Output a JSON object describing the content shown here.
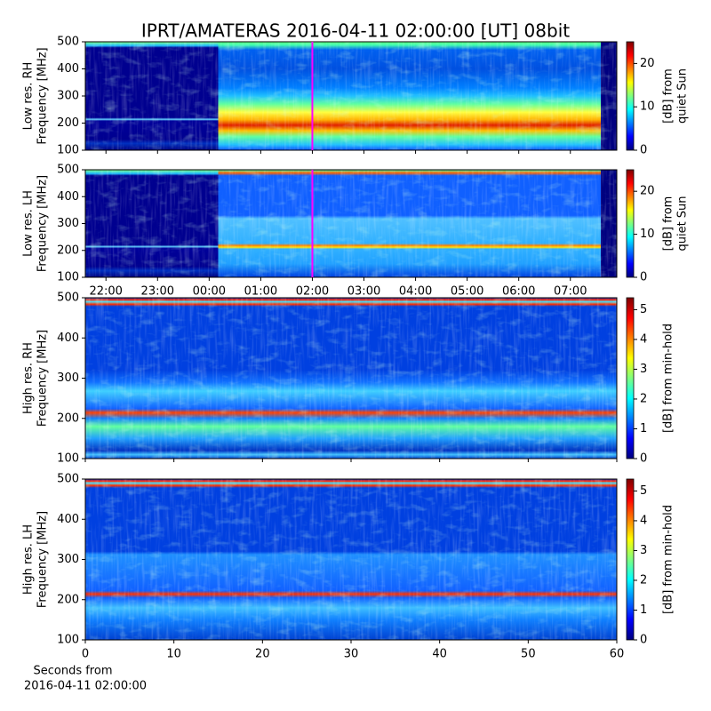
{
  "title": "IPRT/AMATERAS 2016-04-11 02:00:00 [UT]   08bit",
  "chart_data": [
    {
      "type": "heatmap",
      "ylabel": [
        "Low res. RH",
        "Frequency [MHz]"
      ],
      "xlim": [
        21.6,
        31.9
      ],
      "xticks": [
        22,
        23,
        24,
        25,
        26,
        27,
        28,
        29,
        30,
        31
      ],
      "show_xtick_labels": false,
      "ylim": [
        100,
        500
      ],
      "yticks": [
        100,
        200,
        300,
        400,
        500
      ],
      "vline": {
        "x": 26,
        "color": "#ff00ff"
      },
      "colorbar": {
        "label": [
          "[dB] from",
          "quiet Sun"
        ],
        "lim": [
          0,
          25
        ],
        "ticks": [
          0,
          10,
          20
        ],
        "colormap": "jet"
      }
    },
    {
      "type": "heatmap",
      "ylabel": [
        "Low res. LH",
        "Frequency [MHz]"
      ],
      "xlim": [
        21.6,
        31.9
      ],
      "xticks": [
        {
          "value": 22,
          "label": "22:00"
        },
        {
          "value": 23,
          "label": "23:00"
        },
        {
          "value": 24,
          "label": "00:00"
        },
        {
          "value": 25,
          "label": "01:00"
        },
        {
          "value": 26,
          "label": "02:00"
        },
        {
          "value": 27,
          "label": "03:00"
        },
        {
          "value": 28,
          "label": "04:00"
        },
        {
          "value": 29,
          "label": "05:00"
        },
        {
          "value": 30,
          "label": "06:00"
        },
        {
          "value": 31,
          "label": "07:00"
        }
      ],
      "show_xtick_labels": true,
      "ylim": [
        100,
        500
      ],
      "yticks": [
        100,
        200,
        300,
        400,
        500
      ],
      "vline": {
        "x": 26,
        "color": "#ff00ff"
      },
      "colorbar": {
        "label": [
          "[dB] from",
          "quiet Sun"
        ],
        "lim": [
          0,
          25
        ],
        "ticks": [
          0,
          10,
          20
        ],
        "colormap": "jet"
      }
    },
    {
      "type": "heatmap",
      "ylabel": [
        "High res. RH",
        "Frequency [MHz]"
      ],
      "xlim": [
        0,
        60
      ],
      "xticks": [
        0,
        10,
        20,
        30,
        40,
        50,
        60
      ],
      "show_xtick_labels": false,
      "ylim": [
        100,
        500
      ],
      "yticks": [
        100,
        200,
        300,
        400,
        500
      ],
      "colorbar": {
        "label": [
          "[dB] from min-hold"
        ],
        "lim": [
          0,
          5.4
        ],
        "ticks": [
          0,
          1,
          2,
          3,
          4,
          5
        ],
        "colormap": "jet"
      }
    },
    {
      "type": "heatmap",
      "ylabel": [
        "High res. LH",
        "Frequency [MHz]"
      ],
      "xlim": [
        0,
        60
      ],
      "xticks": [
        0,
        10,
        20,
        30,
        40,
        50,
        60
      ],
      "show_xtick_labels": true,
      "ylim": [
        100,
        500
      ],
      "yticks": [
        100,
        200,
        300,
        400,
        500
      ],
      "xlabel": [
        "Seconds from",
        "2016-04-11 02:00:00"
      ],
      "colorbar": {
        "label": [
          "[dB] from min-hold"
        ],
        "lim": [
          0,
          5.4
        ],
        "ticks": [
          0,
          1,
          2,
          3,
          4,
          5
        ],
        "colormap": "jet"
      }
    }
  ]
}
